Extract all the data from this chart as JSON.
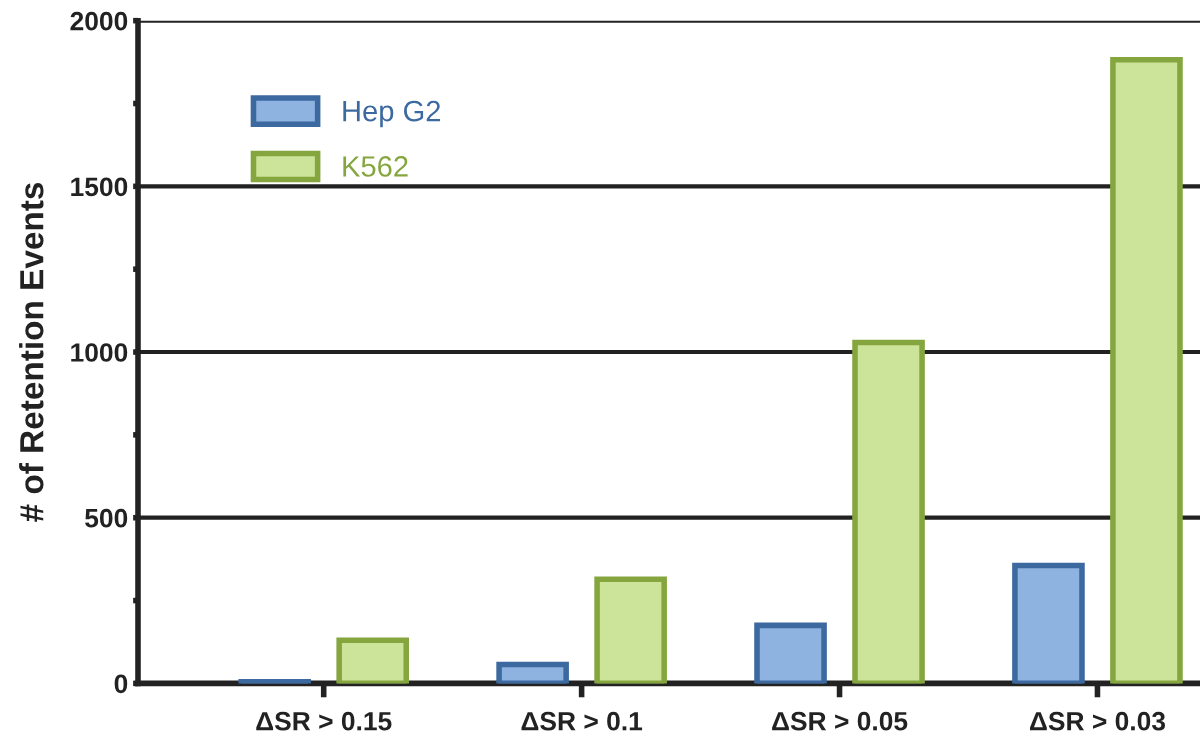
{
  "chart_data": {
    "type": "bar",
    "ylabel": "# of Retention Events",
    "categories": [
      "ΔSR > 0.15",
      "ΔSR > 0.1",
      "ΔSR > 0.05",
      "ΔSR > 0.03"
    ],
    "series": [
      {
        "name": "Hep G2",
        "color": "#8fb3e0",
        "values": [
          5,
          57,
          175,
          356
        ]
      },
      {
        "name": "K562",
        "color": "#cce39a",
        "values": [
          130,
          314,
          1029,
          1882
        ]
      }
    ],
    "ylim": [
      0,
      2000
    ],
    "yticks": [
      0,
      {
        "value": 250,
        "label": null
      },
      500,
      {
        "value": 750,
        "label": null
      },
      1000,
      {
        "value": 1250,
        "label": null
      },
      1500,
      {
        "value": 1750,
        "label": null
      },
      2000
    ],
    "grid": "y",
    "legend": "top left"
  }
}
